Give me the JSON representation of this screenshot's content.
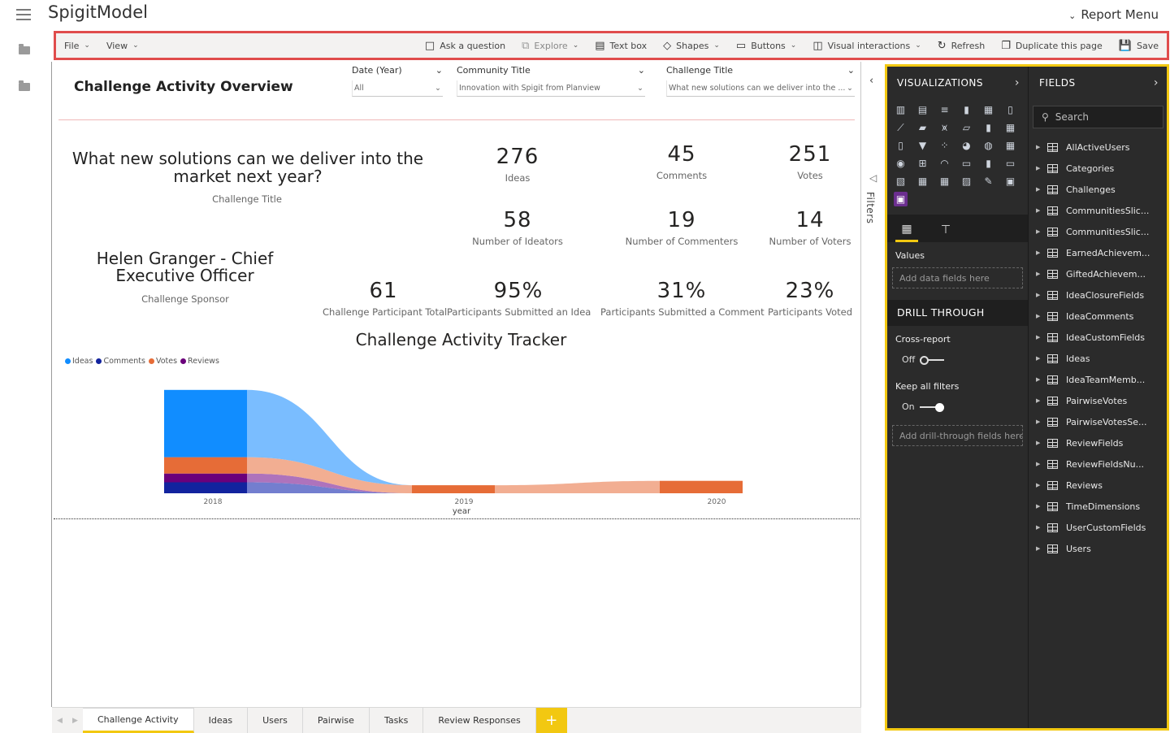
{
  "app": {
    "title": "SpigitModel",
    "report_menu": "Report Menu"
  },
  "toolbar": {
    "file": "File",
    "view": "View",
    "ask_question": "Ask a question",
    "explore": "Explore",
    "text_box": "Text box",
    "shapes": "Shapes",
    "buttons": "Buttons",
    "visual_interactions": "Visual interactions",
    "refresh": "Refresh",
    "duplicate_page": "Duplicate this page",
    "save": "Save"
  },
  "report": {
    "title": "Challenge Activity Overview",
    "slicers": [
      {
        "label": "Date (Year)",
        "value": "All"
      },
      {
        "label": "Community Title",
        "value": "Innovation with Spigit from Planview"
      },
      {
        "label": "Challenge Title",
        "value": "What new solutions can we deliver into the ..."
      }
    ],
    "challenge_title": "What new solutions can we deliver into the market next year?",
    "challenge_title_caption": "Challenge Title",
    "sponsor": "Helen Granger - Chief Executive Officer",
    "sponsor_caption": "Challenge Sponsor",
    "kpis": {
      "ideas": {
        "value": "276",
        "label": "Ideas"
      },
      "comments": {
        "value": "45",
        "label": "Comments"
      },
      "votes": {
        "value": "251",
        "label": "Votes"
      },
      "ideators": {
        "value": "58",
        "label": "Number of Ideators"
      },
      "commenters": {
        "value": "19",
        "label": "Number of Commenters"
      },
      "voters": {
        "value": "14",
        "label": "Number of Voters"
      },
      "participants": {
        "value": "61",
        "label": "Challenge Participant Total"
      },
      "pct_idea": {
        "value": "95%",
        "label": "Participants Submitted an Idea"
      },
      "pct_comment": {
        "value": "31%",
        "label": "Participants Submitted a Comment"
      },
      "pct_voted": {
        "value": "23%",
        "label": "Participants Voted"
      }
    },
    "tracker_title": "Challenge Activity Tracker"
  },
  "chart_data": {
    "type": "area",
    "title": "Challenge Activity Tracker",
    "xlabel": "year",
    "ylabel": "",
    "categories": [
      "2018",
      "2019",
      "2020"
    ],
    "series": [
      {
        "name": "Ideas",
        "color": "#118dff",
        "values": [
          276,
          0,
          0
        ]
      },
      {
        "name": "Comments",
        "color": "#12239e",
        "values": [
          45,
          0,
          0
        ]
      },
      {
        "name": "Votes",
        "color": "#e66c37",
        "values": [
          67,
          33,
          51
        ]
      },
      {
        "name": "Reviews",
        "color": "#6b007b",
        "values": [
          36,
          0,
          0
        ]
      }
    ]
  },
  "tabs": [
    {
      "label": "Challenge Activity",
      "active": true
    },
    {
      "label": "Ideas",
      "active": false
    },
    {
      "label": "Users",
      "active": false
    },
    {
      "label": "Pairwise",
      "active": false
    },
    {
      "label": "Tasks",
      "active": false
    },
    {
      "label": "Review Responses",
      "active": false
    }
  ],
  "filters_label": "Filters",
  "visualizations": {
    "header": "VISUALIZATIONS",
    "values_label": "Values",
    "values_placeholder": "Add data fields here",
    "drill_through": "DRILL THROUGH",
    "cross_report": "Cross-report",
    "cross_report_state": "Off",
    "keep_filters": "Keep all filters",
    "keep_filters_state": "On",
    "drill_placeholder": "Add drill-through fields here"
  },
  "fields": {
    "header": "FIELDS",
    "search_placeholder": "Search",
    "items": [
      "AllActiveUsers",
      "Categories",
      "Challenges",
      "CommunitiesSlic...",
      "CommunitiesSlic...",
      "EarnedAchievem...",
      "GiftedAchievem...",
      "IdeaClosureFields",
      "IdeaComments",
      "IdeaCustomFields",
      "Ideas",
      "IdeaTeamMemb...",
      "PairwiseVotes",
      "PairwiseVotesSe...",
      "ReviewFields",
      "ReviewFieldsNu...",
      "Reviews",
      "TimeDimensions",
      "UserCustomFields",
      "Users"
    ]
  },
  "colors": {
    "accent": "#f2c811",
    "toolbar_highlight": "#e04c4c",
    "pane_bg": "#2b2b2b"
  }
}
